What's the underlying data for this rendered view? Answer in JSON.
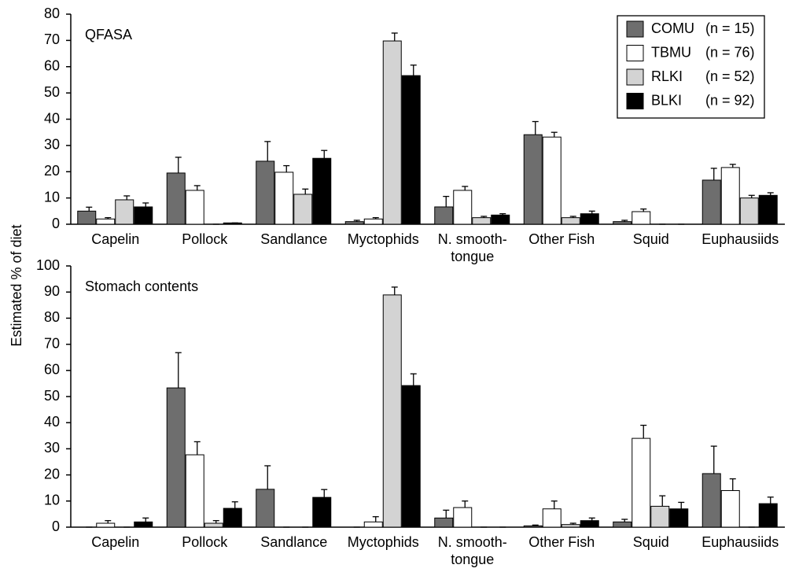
{
  "ylabel": "Estimated % of diet",
  "chart_data": [
    {
      "type": "bar",
      "title": "QFASA",
      "categories": [
        "Capelin",
        "Pollock",
        "Sandlance",
        "Myctophids",
        "N. smooth-\ntongue",
        "Other Fish",
        "Squid",
        "Euphausiids"
      ],
      "ylim": [
        0,
        80
      ],
      "yticks": [
        0,
        10,
        20,
        30,
        40,
        50,
        60,
        70,
        80
      ],
      "grid": false,
      "legend": "upper right",
      "series": [
        {
          "name": "COMU",
          "sample_size": "(n = 15)",
          "color": "#6e6e6e",
          "values": [
            5,
            19.5,
            24,
            1,
            6.6,
            34.1,
            1,
            16.8
          ],
          "errors": [
            1.5,
            6,
            7.5,
            0.5,
            4,
            5,
            0.5,
            4.5
          ]
        },
        {
          "name": "TBMU",
          "sample_size": "(n = 76)",
          "color": "#ffffff",
          "values": [
            2,
            12.9,
            19.8,
            2,
            12.9,
            33.2,
            4.8,
            21.6
          ],
          "errors": [
            0.5,
            1.8,
            2.5,
            0.5,
            1.5,
            1.8,
            1,
            1.2
          ]
        },
        {
          "name": "RLKI",
          "sample_size": "(n = 52)",
          "color": "#d3d3d3",
          "values": [
            9.3,
            0,
            11.4,
            69.8,
            2.5,
            2.5,
            0,
            10
          ],
          "errors": [
            1.5,
            0,
            2,
            3,
            0.5,
            0.5,
            0,
            1
          ]
        },
        {
          "name": "BLKI",
          "sample_size": "(n = 92)",
          "color": "#000000",
          "values": [
            6.6,
            0.5,
            25.1,
            56.6,
            3.5,
            4,
            0,
            11
          ],
          "errors": [
            1.5,
            0,
            3,
            4,
            0.5,
            1,
            0,
            1
          ]
        }
      ]
    },
    {
      "type": "bar",
      "title": "Stomach contents",
      "categories": [
        "Capelin",
        "Pollock",
        "Sandlance",
        "Myctophids",
        "N. smooth-\ntongue",
        "Other Fish",
        "Squid",
        "Euphausiids"
      ],
      "ylim": [
        0,
        100
      ],
      "yticks": [
        0,
        10,
        20,
        30,
        40,
        50,
        60,
        70,
        80,
        90,
        100
      ],
      "grid": false,
      "series": [
        {
          "color": "#6e6e6e",
          "values": [
            0,
            53.3,
            14.5,
            0,
            3.5,
            0.5,
            2,
            20.5
          ],
          "errors": [
            0,
            13.5,
            9,
            0,
            3,
            0.3,
            1,
            10.5
          ]
        },
        {
          "color": "#ffffff",
          "values": [
            1.5,
            27.7,
            0,
            2,
            7.5,
            7,
            34,
            14
          ],
          "errors": [
            1,
            5,
            0,
            2,
            2.5,
            3,
            5,
            4.5
          ]
        },
        {
          "color": "#d3d3d3",
          "values": [
            0,
            1.5,
            0,
            88.9,
            0,
            1,
            8,
            0
          ],
          "errors": [
            0,
            1,
            0,
            3,
            0,
            0.5,
            4,
            0
          ]
        },
        {
          "color": "#000000",
          "values": [
            2,
            7.2,
            11.4,
            54.2,
            0,
            2.5,
            7,
            9
          ],
          "errors": [
            1.5,
            2.5,
            3,
            4.5,
            0,
            1,
            2.5,
            2.5
          ]
        }
      ]
    }
  ]
}
